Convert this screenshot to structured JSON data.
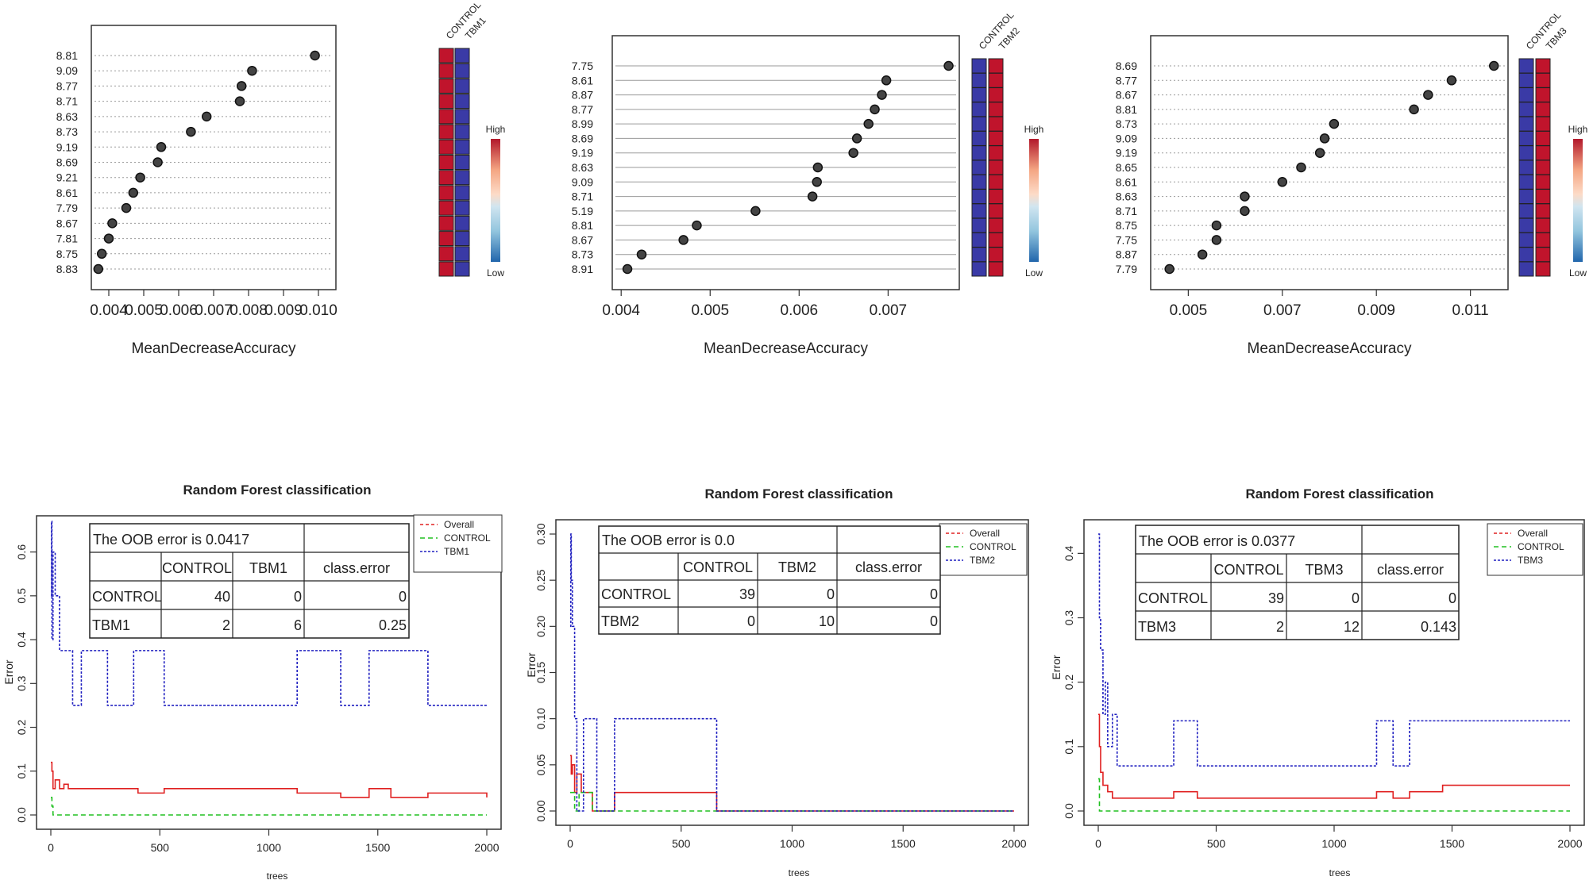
{
  "chart_data": [
    {
      "type": "scatter",
      "variant": "dotplot",
      "xlabel": "MeanDecreaseAccuracy",
      "xticks": [
        "0.004",
        "0.005",
        "0.006",
        "0.007",
        "0.008",
        "0.009",
        "0.010"
      ],
      "xlim": [
        0.0035,
        0.0105
      ],
      "heat_columns": [
        "CONTROL",
        "TBM1"
      ],
      "legend": {
        "high": "High",
        "low": "Low"
      },
      "features": [
        "8.81",
        "9.09",
        "8.77",
        "8.71",
        "8.63",
        "8.73",
        "9.19",
        "8.69",
        "9.21",
        "8.61",
        "7.79",
        "8.67",
        "7.81",
        "8.75",
        "8.83"
      ],
      "values": [
        0.0099,
        0.0081,
        0.0078,
        0.00775,
        0.0068,
        0.00635,
        0.0055,
        0.0054,
        0.0049,
        0.0047,
        0.0045,
        0.0041,
        0.004,
        0.0038,
        0.0037
      ],
      "heat": [
        [
          "high",
          "low"
        ],
        [
          "high",
          "low"
        ],
        [
          "high",
          "low"
        ],
        [
          "high",
          "low"
        ],
        [
          "high",
          "low"
        ],
        [
          "high",
          "low"
        ],
        [
          "high",
          "low"
        ],
        [
          "high",
          "low"
        ],
        [
          "high",
          "low"
        ],
        [
          "high",
          "low"
        ],
        [
          "high",
          "low"
        ],
        [
          "high",
          "low"
        ],
        [
          "high",
          "low"
        ],
        [
          "high",
          "low"
        ],
        [
          "high",
          "low"
        ]
      ]
    },
    {
      "type": "scatter",
      "variant": "dotplot",
      "xlabel": "MeanDecreaseAccuracy",
      "xticks": [
        "0.004",
        "0.005",
        "0.006",
        "0.007"
      ],
      "xlim": [
        0.0039,
        0.0078
      ],
      "heat_columns": [
        "CONTROL",
        "TBM2"
      ],
      "legend": {
        "high": "High",
        "low": "Low"
      },
      "features": [
        "7.75",
        "8.61",
        "8.87",
        "8.77",
        "8.99",
        "8.69",
        "9.19",
        "8.63",
        "9.09",
        "8.71",
        "5.19",
        "8.81",
        "8.67",
        "8.73",
        "8.91"
      ],
      "values": [
        0.00768,
        0.00698,
        0.00693,
        0.00685,
        0.00678,
        0.00665,
        0.00661,
        0.00621,
        0.0062,
        0.00615,
        0.00551,
        0.00485,
        0.0047,
        0.00423,
        0.00407
      ],
      "heat": [
        [
          "low",
          "high"
        ],
        [
          "low",
          "high"
        ],
        [
          "low",
          "high"
        ],
        [
          "low",
          "high"
        ],
        [
          "low",
          "high"
        ],
        [
          "low",
          "high"
        ],
        [
          "low",
          "high"
        ],
        [
          "low",
          "high"
        ],
        [
          "low",
          "high"
        ],
        [
          "low",
          "high"
        ],
        [
          "low",
          "high"
        ],
        [
          "low",
          "high"
        ],
        [
          "low",
          "high"
        ],
        [
          "low",
          "high"
        ],
        [
          "low",
          "high"
        ]
      ]
    },
    {
      "type": "scatter",
      "variant": "dotplot",
      "xlabel": "MeanDecreaseAccuracy",
      "xticks": [
        "0.005",
        "0.007",
        "0.009",
        "0.011"
      ],
      "xlim": [
        0.0042,
        0.0118
      ],
      "heat_columns": [
        "CONTROL",
        "TBM3"
      ],
      "legend": {
        "high": "High",
        "low": "Low"
      },
      "features": [
        "8.69",
        "8.77",
        "8.67",
        "8.81",
        "8.73",
        "9.09",
        "9.19",
        "8.65",
        "8.61",
        "8.63",
        "8.71",
        "8.75",
        "7.75",
        "8.87",
        "7.79"
      ],
      "values": [
        0.0115,
        0.0106,
        0.0101,
        0.0098,
        0.0081,
        0.0079,
        0.0078,
        0.0074,
        0.007,
        0.0062,
        0.0062,
        0.0056,
        0.0056,
        0.0053,
        0.0046
      ],
      "heat": [
        [
          "low",
          "high"
        ],
        [
          "low",
          "high"
        ],
        [
          "low",
          "high"
        ],
        [
          "low",
          "high"
        ],
        [
          "low",
          "high"
        ],
        [
          "low",
          "high"
        ],
        [
          "low",
          "high"
        ],
        [
          "low",
          "high"
        ],
        [
          "low",
          "high"
        ],
        [
          "low",
          "high"
        ],
        [
          "low",
          "high"
        ],
        [
          "low",
          "high"
        ],
        [
          "low",
          "high"
        ],
        [
          "low",
          "high"
        ],
        [
          "low",
          "high"
        ]
      ]
    },
    {
      "type": "line",
      "title": "Random Forest classification",
      "xlabel": "trees",
      "ylabel": "Error",
      "xlim": [
        0,
        2000
      ],
      "ylim": [
        0,
        0.65
      ],
      "xticks": [
        "0",
        "500",
        "1000",
        "1500",
        "2000"
      ],
      "yticks": [
        "0.0",
        "0.1",
        "0.2",
        "0.3",
        "0.4",
        "0.5",
        "0.6"
      ],
      "legend": [
        "Overall",
        "CONTROL",
        "TBM1"
      ],
      "colors": {
        "overall": "#e02020",
        "control": "#20c020",
        "class": "#2020c0"
      },
      "table": {
        "header": [
          "The OOB error is 0.0417"
        ],
        "columns": [
          "CONTROL",
          "TBM1",
          "class.error"
        ],
        "rows": [
          [
            "CONTROL",
            "40",
            "0",
            "0"
          ],
          [
            "TBM1",
            "2",
            "6",
            "0.25"
          ]
        ]
      },
      "series": [
        {
          "name": "Overall",
          "x": [
            0,
            5,
            10,
            20,
            40,
            60,
            80,
            150,
            260,
            400,
            520,
            1130,
            1330,
            1460,
            1560,
            1730,
            2000
          ],
          "y": [
            0.12,
            0.1,
            0.06,
            0.08,
            0.06,
            0.07,
            0.06,
            0.06,
            0.06,
            0.05,
            0.06,
            0.05,
            0.04,
            0.06,
            0.04,
            0.05,
            0.04
          ]
        },
        {
          "name": "CONTROL",
          "x": [
            0,
            5,
            10,
            20,
            2000
          ],
          "y": [
            0.04,
            0.02,
            0.0,
            0.0,
            0.0
          ]
        },
        {
          "name": "TBM1",
          "x": [
            0,
            3,
            5,
            10,
            20,
            40,
            60,
            100,
            140,
            260,
            380,
            520,
            1130,
            1330,
            1460,
            1730,
            2000
          ],
          "y": [
            0.5,
            0.67,
            0.4,
            0.6,
            0.5,
            0.375,
            0.375,
            0.25,
            0.375,
            0.25,
            0.375,
            0.25,
            0.375,
            0.25,
            0.375,
            0.25,
            0.25
          ]
        }
      ]
    },
    {
      "type": "line",
      "title": "Random Forest classification",
      "xlabel": "trees",
      "ylabel": "Error",
      "xlim": [
        0,
        2000
      ],
      "ylim": [
        0,
        0.3
      ],
      "xticks": [
        "0",
        "500",
        "1000",
        "1500",
        "2000"
      ],
      "yticks": [
        "0.00",
        "0.05",
        "0.10",
        "0.15",
        "0.20",
        "0.25",
        "0.30"
      ],
      "legend": [
        "Overall",
        "CONTROL",
        "TBM2"
      ],
      "colors": {
        "overall": "#e02020",
        "control": "#20c020",
        "class": "#2020c0"
      },
      "table": {
        "header": [
          "The OOB error is 0.0"
        ],
        "columns": [
          "CONTROL",
          "TBM2",
          "class.error"
        ],
        "rows": [
          [
            "CONTROL",
            "39",
            "0",
            "0"
          ],
          [
            "TBM2",
            "0",
            "10",
            "0"
          ]
        ]
      },
      "series": [
        {
          "name": "Overall",
          "x": [
            0,
            5,
            10,
            20,
            30,
            50,
            100,
            200,
            280,
            630,
            660,
            2000
          ],
          "y": [
            0.06,
            0.04,
            0.05,
            0.02,
            0.04,
            0.02,
            0.0,
            0.02,
            0.02,
            0.02,
            0.0,
            0.0
          ]
        },
        {
          "name": "CONTROL",
          "x": [
            0,
            10,
            20,
            40,
            100,
            660,
            2000
          ],
          "y": [
            0.02,
            0.02,
            0.0,
            0.02,
            0.0,
            0.0,
            0.0
          ]
        },
        {
          "name": "TBM2",
          "x": [
            0,
            3,
            5,
            10,
            20,
            30,
            60,
            120,
            200,
            280,
            620,
            660,
            700,
            2000
          ],
          "y": [
            0.2,
            0.3,
            0.25,
            0.2,
            0.1,
            0.0,
            0.1,
            0.0,
            0.1,
            0.1,
            0.1,
            0.0,
            0.0,
            0.0
          ]
        }
      ]
    },
    {
      "type": "line",
      "title": "Random Forest classification",
      "xlabel": "trees",
      "ylabel": "Error",
      "xlim": [
        0,
        2000
      ],
      "ylim": [
        0,
        0.43
      ],
      "xticks": [
        "0",
        "500",
        "1000",
        "1500",
        "2000"
      ],
      "yticks": [
        "0.0",
        "0.1",
        "0.2",
        "0.3",
        "0.4"
      ],
      "legend": [
        "Overall",
        "CONTROL",
        "TBM3"
      ],
      "colors": {
        "overall": "#e02020",
        "control": "#20c020",
        "class": "#2020c0"
      },
      "table": {
        "header": [
          "The OOB error is 0.0377"
        ],
        "columns": [
          "CONTROL",
          "TBM3",
          "class.error"
        ],
        "rows": [
          [
            "CONTROL",
            "39",
            "0",
            "0"
          ],
          [
            "TBM3",
            "2",
            "12",
            "0.143"
          ]
        ]
      },
      "series": [
        {
          "name": "Overall",
          "x": [
            0,
            5,
            10,
            20,
            40,
            60,
            80,
            320,
            420,
            1180,
            1250,
            1320,
            1460,
            2000
          ],
          "y": [
            0.15,
            0.1,
            0.06,
            0.04,
            0.03,
            0.02,
            0.02,
            0.03,
            0.02,
            0.03,
            0.02,
            0.03,
            0.04,
            0.04
          ]
        },
        {
          "name": "CONTROL",
          "x": [
            0,
            5,
            10,
            2000
          ],
          "y": [
            0.05,
            0.0,
            0.0,
            0.0
          ]
        },
        {
          "name": "TBM3",
          "x": [
            0,
            5,
            10,
            20,
            30,
            40,
            60,
            80,
            320,
            420,
            1180,
            1250,
            1320,
            1460,
            2000
          ],
          "y": [
            0.43,
            0.3,
            0.25,
            0.15,
            0.2,
            0.1,
            0.15,
            0.07,
            0.14,
            0.07,
            0.14,
            0.07,
            0.14,
            0.14,
            0.14
          ]
        }
      ]
    }
  ]
}
